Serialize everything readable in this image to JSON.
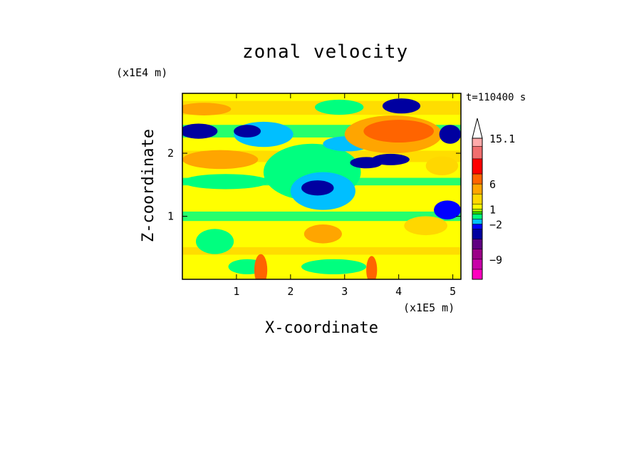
{
  "chart_data": {
    "type": "heatmap",
    "title": "zonal velocity",
    "xlabel": "X-coordinate",
    "ylabel": "Z-coordinate",
    "x_unit_label": "(x1E5 m)",
    "y_unit_label": "(x1E4 m)",
    "time_label": "t=110400 s",
    "xlim": [
      0,
      5.15
    ],
    "ylim": [
      0,
      2.95
    ],
    "x_ticks": [
      1,
      2,
      3,
      4,
      5
    ],
    "y_ticks": [
      1,
      2
    ],
    "colorbar": {
      "ticks": [
        {
          "value": 15.1,
          "label": "15.1"
        },
        {
          "value": 6,
          "label": "6"
        },
        {
          "value": 1,
          "label": "1"
        },
        {
          "value": -2,
          "label": "−2"
        },
        {
          "value": -9,
          "label": "−9"
        }
      ],
      "levels": [
        {
          "value": -13,
          "color": "#ff00bf"
        },
        {
          "value": -11,
          "color": "#c800a8"
        },
        {
          "value": -9,
          "color": "#9b0087"
        },
        {
          "value": -7,
          "color": "#5f0082"
        },
        {
          "value": -5,
          "color": "#0000a0"
        },
        {
          "value": -3,
          "color": "#0000ff"
        },
        {
          "value": -2,
          "color": "#00bfff"
        },
        {
          "value": -1,
          "color": "#00ff7f"
        },
        {
          "value": 0,
          "color": "#2fd600"
        },
        {
          "value": 0.5,
          "color": "#b4ff00"
        },
        {
          "value": 1,
          "color": "#ffff00"
        },
        {
          "value": 2,
          "color": "#ffd700"
        },
        {
          "value": 4,
          "color": "#ffa500"
        },
        {
          "value": 6,
          "color": "#ff6400"
        },
        {
          "value": 8,
          "color": "#ff0000"
        },
        {
          "value": 11,
          "color": "#f06e6e"
        },
        {
          "value": 13.5,
          "color": "#ffaaaa"
        },
        {
          "value": 15.1,
          "color": "#ffcccc"
        }
      ]
    },
    "features": [
      {
        "x": 0.3,
        "z": 2.35,
        "rx": 0.35,
        "rz": 0.12,
        "v": -5
      },
      {
        "x": 1.2,
        "z": 2.35,
        "rx": 0.25,
        "rz": 0.1,
        "v": -5
      },
      {
        "x": 1.5,
        "z": 2.3,
        "rx": 0.55,
        "rz": 0.2,
        "v": -2
      },
      {
        "x": 0.4,
        "z": 2.7,
        "rx": 0.5,
        "rz": 0.1,
        "v": 4
      },
      {
        "x": 2.9,
        "z": 2.73,
        "rx": 0.45,
        "rz": 0.12,
        "v": -1
      },
      {
        "x": 4.05,
        "z": 2.75,
        "rx": 0.35,
        "rz": 0.12,
        "v": -5
      },
      {
        "x": 4.0,
        "z": 2.35,
        "rx": 0.65,
        "rz": 0.18,
        "v": 6
      },
      {
        "x": 3.9,
        "z": 2.3,
        "rx": 0.9,
        "rz": 0.3,
        "v": 4
      },
      {
        "x": 3.05,
        "z": 2.15,
        "rx": 0.45,
        "rz": 0.12,
        "v": -2
      },
      {
        "x": 3.4,
        "z": 1.85,
        "rx": 0.3,
        "rz": 0.09,
        "v": -5
      },
      {
        "x": 3.85,
        "z": 1.9,
        "rx": 0.35,
        "rz": 0.09,
        "v": -5
      },
      {
        "x": 4.95,
        "z": 2.3,
        "rx": 0.2,
        "rz": 0.15,
        "v": -5
      },
      {
        "x": 0.7,
        "z": 1.9,
        "rx": 0.7,
        "rz": 0.15,
        "v": 4
      },
      {
        "x": 0.8,
        "z": 1.55,
        "rx": 0.8,
        "rz": 0.12,
        "v": -1
      },
      {
        "x": 2.5,
        "z": 1.45,
        "rx": 0.3,
        "rz": 0.12,
        "v": -5
      },
      {
        "x": 2.6,
        "z": 1.4,
        "rx": 0.6,
        "rz": 0.3,
        "v": -2
      },
      {
        "x": 2.4,
        "z": 1.7,
        "rx": 0.9,
        "rz": 0.45,
        "v": -1
      },
      {
        "x": 2.6,
        "z": 0.72,
        "rx": 0.35,
        "rz": 0.15,
        "v": 4
      },
      {
        "x": 4.5,
        "z": 0.85,
        "rx": 0.4,
        "rz": 0.15,
        "v": 2
      },
      {
        "x": 4.9,
        "z": 1.1,
        "rx": 0.25,
        "rz": 0.15,
        "v": -3
      },
      {
        "x": 0.6,
        "z": 0.6,
        "rx": 0.35,
        "rz": 0.2,
        "v": -1
      },
      {
        "x": 1.2,
        "z": 0.2,
        "rx": 0.35,
        "rz": 0.12,
        "v": -1
      },
      {
        "x": 2.8,
        "z": 0.2,
        "rx": 0.6,
        "rz": 0.12,
        "v": -1
      },
      {
        "x": 1.45,
        "z": 0.15,
        "rx": 0.12,
        "rz": 0.25,
        "v": 6
      },
      {
        "x": 3.5,
        "z": 0.15,
        "rx": 0.1,
        "rz": 0.22,
        "v": 6
      },
      {
        "x": 4.8,
        "z": 1.8,
        "rx": 0.3,
        "rz": 0.15,
        "v": 2
      }
    ]
  }
}
